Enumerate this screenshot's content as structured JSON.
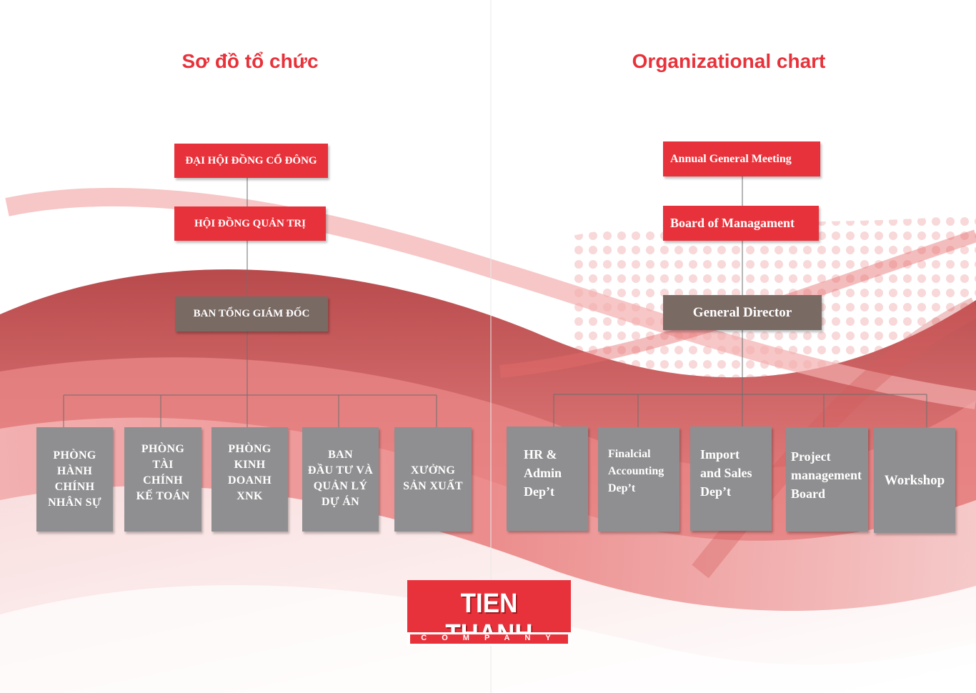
{
  "left": {
    "title": "Sơ đồ tổ chức",
    "top_levels": [
      "ĐẠI HỘI  ĐỒNG CỔ ĐÔNG",
      "HỘI ĐỒNG QUẢN TRỊ",
      "BAN TỔNG GIÁM ĐỐC"
    ],
    "departments": [
      "PHÒNG\nHÀNH\nCHÍNH\nNHÂN SỰ",
      "PHÒNG\nTÀI\nCHÍNH\nKẾ TOÁN",
      "PHÒNG\nKINH\nDOANH\nXNK",
      "BAN\nĐẦU TƯ VÀ\nQUẢN LÝ\nDỰ ÁN",
      "XƯỞNG\nSẢN XUẤT"
    ]
  },
  "right": {
    "title": "Organizational chart",
    "top_levels": [
      "Annual General Meeting",
      "Board of Managament",
      "General Director"
    ],
    "departments": [
      "HR &\nAdmin\nDep’t",
      "Finalcial\nAccounting\nDep’t",
      "Import\nand Sales\nDep’t",
      "Project\nmanagement\nBoard",
      "Workshop"
    ]
  },
  "logo": {
    "name": "TIEN THANH",
    "subtitle": "COMPANY"
  },
  "colors": {
    "accent_red": "#e8323b",
    "director_brown": "#7a6a64",
    "department_grey": "#8f8f91"
  }
}
